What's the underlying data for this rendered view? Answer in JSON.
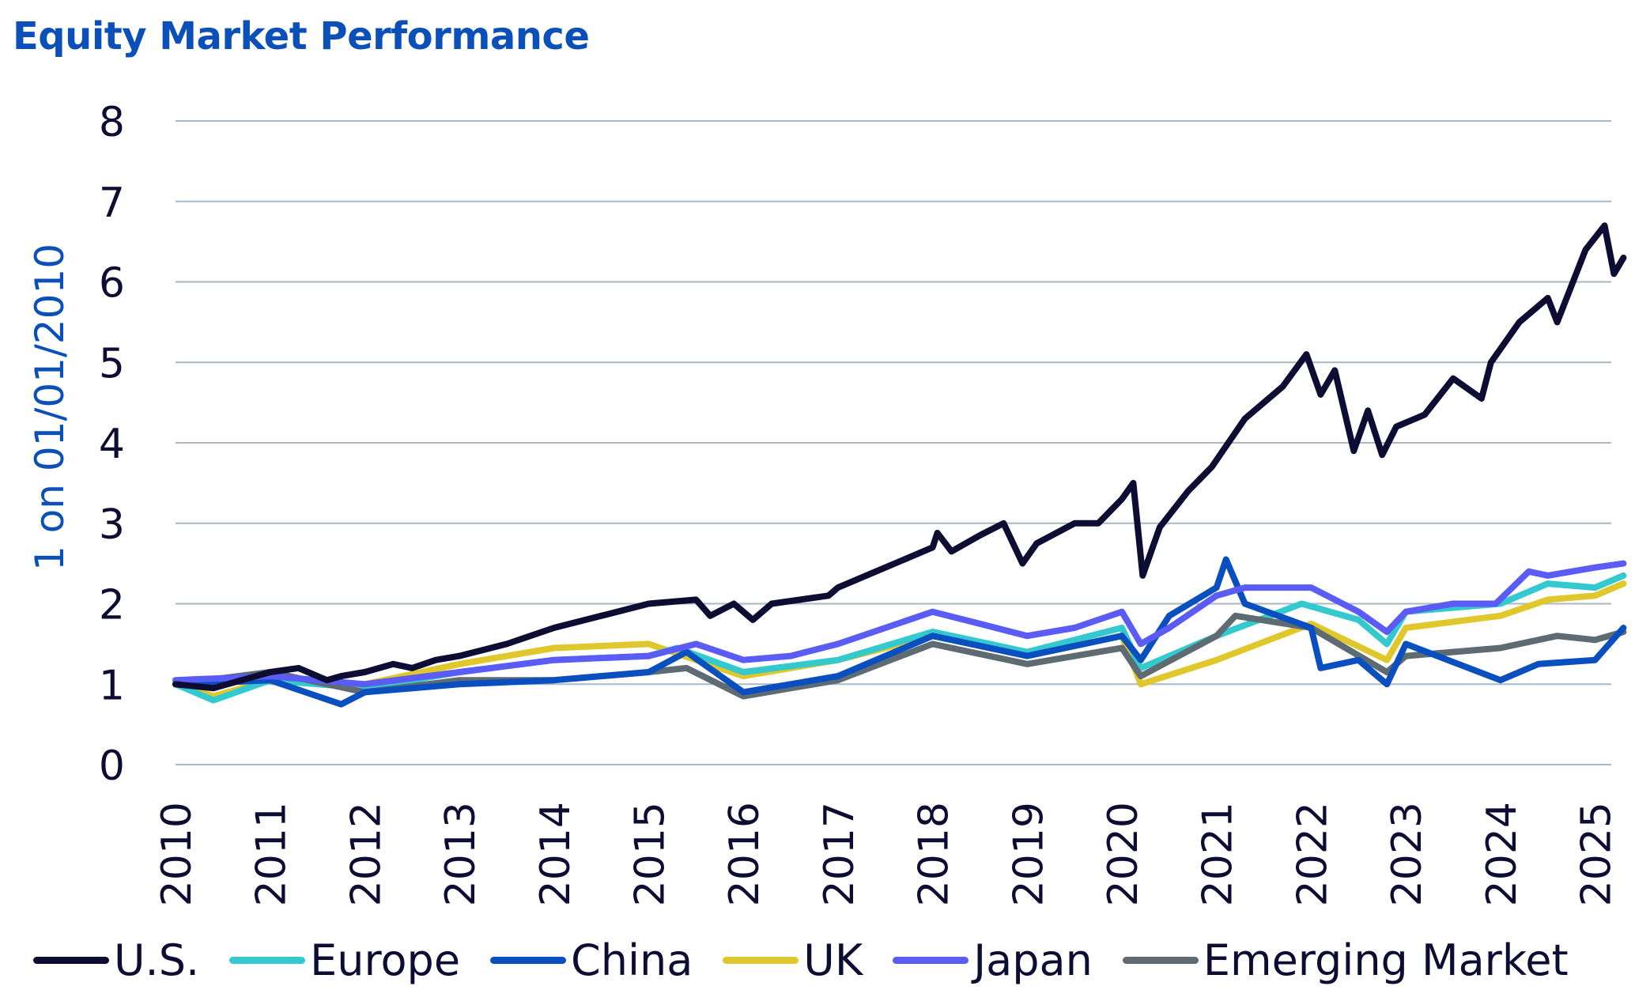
{
  "chart_data": {
    "type": "line",
    "title": "Equity Market Performance",
    "ylabel": "1 on 01/01/2010",
    "xlabel": "",
    "ylim": [
      0,
      8
    ],
    "yticks": [
      "0",
      "1",
      "2",
      "3",
      "4",
      "5",
      "6",
      "7",
      "8"
    ],
    "xlim": [
      2010,
      2025.3
    ],
    "xticks": [
      "2010",
      "2011",
      "2012",
      "2013",
      "2014",
      "2015",
      "2016",
      "2017",
      "2018",
      "2019",
      "2020",
      "2021",
      "2022",
      "2023",
      "2024",
      "2025"
    ],
    "grid": true,
    "legend_position": "bottom",
    "series": [
      {
        "name": "U.S.",
        "color": "#0d0d33",
        "points": [
          [
            2010,
            1.0
          ],
          [
            2010.4,
            0.95
          ],
          [
            2010.7,
            1.05
          ],
          [
            2011,
            1.15
          ],
          [
            2011.3,
            1.2
          ],
          [
            2011.6,
            1.05
          ],
          [
            2011.75,
            1.1
          ],
          [
            2012,
            1.15
          ],
          [
            2012.3,
            1.25
          ],
          [
            2012.5,
            1.2
          ],
          [
            2012.75,
            1.3
          ],
          [
            2013,
            1.35
          ],
          [
            2013.5,
            1.5
          ],
          [
            2014,
            1.7
          ],
          [
            2014.5,
            1.85
          ],
          [
            2015,
            2.0
          ],
          [
            2015.5,
            2.05
          ],
          [
            2015.65,
            1.85
          ],
          [
            2015.9,
            2.0
          ],
          [
            2016.1,
            1.8
          ],
          [
            2016.3,
            2.0
          ],
          [
            2016.9,
            2.1
          ],
          [
            2017,
            2.2
          ],
          [
            2017.5,
            2.45
          ],
          [
            2018,
            2.7
          ],
          [
            2018.05,
            2.88
          ],
          [
            2018.2,
            2.65
          ],
          [
            2018.5,
            2.85
          ],
          [
            2018.75,
            3.0
          ],
          [
            2018.95,
            2.5
          ],
          [
            2019.1,
            2.75
          ],
          [
            2019.5,
            3.0
          ],
          [
            2019.75,
            3.0
          ],
          [
            2020.0,
            3.3
          ],
          [
            2020.12,
            3.5
          ],
          [
            2020.22,
            2.35
          ],
          [
            2020.4,
            2.95
          ],
          [
            2020.7,
            3.4
          ],
          [
            2020.95,
            3.7
          ],
          [
            2021.3,
            4.3
          ],
          [
            2021.7,
            4.7
          ],
          [
            2021.95,
            5.1
          ],
          [
            2022.1,
            4.6
          ],
          [
            2022.25,
            4.9
          ],
          [
            2022.45,
            3.9
          ],
          [
            2022.6,
            4.4
          ],
          [
            2022.75,
            3.85
          ],
          [
            2022.9,
            4.2
          ],
          [
            2023.2,
            4.35
          ],
          [
            2023.5,
            4.8
          ],
          [
            2023.8,
            4.55
          ],
          [
            2023.9,
            5.0
          ],
          [
            2024.2,
            5.5
          ],
          [
            2024.5,
            5.8
          ],
          [
            2024.6,
            5.5
          ],
          [
            2024.9,
            6.4
          ],
          [
            2025.1,
            6.7
          ],
          [
            2025.2,
            6.1
          ],
          [
            2025.3,
            6.3
          ]
        ]
      },
      {
        "name": "Europe",
        "color": "#33c9cf",
        "points": [
          [
            2010,
            1.0
          ],
          [
            2010.4,
            0.8
          ],
          [
            2011,
            1.05
          ],
          [
            2012,
            0.95
          ],
          [
            2013,
            1.15
          ],
          [
            2014,
            1.3
          ],
          [
            2015,
            1.35
          ],
          [
            2015.3,
            1.45
          ],
          [
            2016,
            1.15
          ],
          [
            2017,
            1.3
          ],
          [
            2018,
            1.65
          ],
          [
            2019,
            1.4
          ],
          [
            2020,
            1.7
          ],
          [
            2020.2,
            1.2
          ],
          [
            2021,
            1.6
          ],
          [
            2021.9,
            2.0
          ],
          [
            2022.5,
            1.8
          ],
          [
            2022.8,
            1.5
          ],
          [
            2023,
            1.9
          ],
          [
            2024,
            2.0
          ],
          [
            2024.5,
            2.25
          ],
          [
            2025,
            2.2
          ],
          [
            2025.3,
            2.35
          ]
        ]
      },
      {
        "name": "China",
        "color": "#0a4fc0",
        "points": [
          [
            2010,
            1.0
          ],
          [
            2011,
            1.05
          ],
          [
            2011.75,
            0.75
          ],
          [
            2012,
            0.9
          ],
          [
            2013,
            1.0
          ],
          [
            2014,
            1.05
          ],
          [
            2015,
            1.15
          ],
          [
            2015.4,
            1.4
          ],
          [
            2016,
            0.9
          ],
          [
            2017,
            1.1
          ],
          [
            2018,
            1.6
          ],
          [
            2019,
            1.35
          ],
          [
            2020,
            1.6
          ],
          [
            2020.2,
            1.3
          ],
          [
            2020.5,
            1.85
          ],
          [
            2021.0,
            2.2
          ],
          [
            2021.1,
            2.55
          ],
          [
            2021.3,
            2.0
          ],
          [
            2022,
            1.7
          ],
          [
            2022.1,
            1.2
          ],
          [
            2022.5,
            1.3
          ],
          [
            2022.8,
            1.0
          ],
          [
            2023,
            1.5
          ],
          [
            2024,
            1.05
          ],
          [
            2024.4,
            1.25
          ],
          [
            2025,
            1.3
          ],
          [
            2025.3,
            1.7
          ]
        ]
      },
      {
        "name": "UK",
        "color": "#e0c72c",
        "points": [
          [
            2010,
            1.0
          ],
          [
            2010.4,
            0.85
          ],
          [
            2011,
            1.05
          ],
          [
            2012,
            1.0
          ],
          [
            2013,
            1.25
          ],
          [
            2014,
            1.45
          ],
          [
            2015,
            1.5
          ],
          [
            2016,
            1.1
          ],
          [
            2017,
            1.3
          ],
          [
            2018,
            1.6
          ],
          [
            2019,
            1.35
          ],
          [
            2020,
            1.6
          ],
          [
            2020.2,
            1.0
          ],
          [
            2021,
            1.3
          ],
          [
            2022,
            1.75
          ],
          [
            2022.8,
            1.3
          ],
          [
            2023,
            1.7
          ],
          [
            2024,
            1.85
          ],
          [
            2024.5,
            2.05
          ],
          [
            2025,
            2.1
          ],
          [
            2025.3,
            2.25
          ]
        ]
      },
      {
        "name": "Japan",
        "color": "#5b5bf5",
        "points": [
          [
            2010,
            1.05
          ],
          [
            2011,
            1.1
          ],
          [
            2012,
            1.0
          ],
          [
            2013,
            1.15
          ],
          [
            2014,
            1.3
          ],
          [
            2015,
            1.35
          ],
          [
            2015.5,
            1.5
          ],
          [
            2016,
            1.3
          ],
          [
            2016.5,
            1.35
          ],
          [
            2017,
            1.5
          ],
          [
            2018,
            1.9
          ],
          [
            2018.5,
            1.75
          ],
          [
            2019,
            1.6
          ],
          [
            2019.5,
            1.7
          ],
          [
            2020,
            1.9
          ],
          [
            2020.2,
            1.5
          ],
          [
            2020.5,
            1.7
          ],
          [
            2021,
            2.1
          ],
          [
            2021.3,
            2.2
          ],
          [
            2021.8,
            2.2
          ],
          [
            2022,
            2.2
          ],
          [
            2022.5,
            1.9
          ],
          [
            2022.8,
            1.65
          ],
          [
            2023,
            1.9
          ],
          [
            2023.5,
            2.0
          ],
          [
            2023.95,
            2.0
          ],
          [
            2024.3,
            2.4
          ],
          [
            2024.5,
            2.35
          ],
          [
            2025,
            2.45
          ],
          [
            2025.3,
            2.5
          ]
        ]
      },
      {
        "name": "Emerging Market",
        "color": "#5f6b73",
        "points": [
          [
            2010,
            1.0
          ],
          [
            2011,
            1.15
          ],
          [
            2012,
            0.9
          ],
          [
            2013,
            1.05
          ],
          [
            2014,
            1.05
          ],
          [
            2015,
            1.15
          ],
          [
            2015.4,
            1.2
          ],
          [
            2016,
            0.85
          ],
          [
            2017,
            1.05
          ],
          [
            2018,
            1.5
          ],
          [
            2019,
            1.25
          ],
          [
            2020,
            1.45
          ],
          [
            2020.2,
            1.1
          ],
          [
            2021,
            1.6
          ],
          [
            2021.2,
            1.85
          ],
          [
            2022,
            1.7
          ],
          [
            2022.8,
            1.15
          ],
          [
            2023,
            1.35
          ],
          [
            2024,
            1.45
          ],
          [
            2024.6,
            1.6
          ],
          [
            2025,
            1.55
          ],
          [
            2025.3,
            1.65
          ]
        ]
      }
    ]
  },
  "colors": {
    "title": "#0b4fb8",
    "axis_title": "#0b4fb8",
    "grid": "#a9b8c4",
    "text": "#0d0d33"
  }
}
